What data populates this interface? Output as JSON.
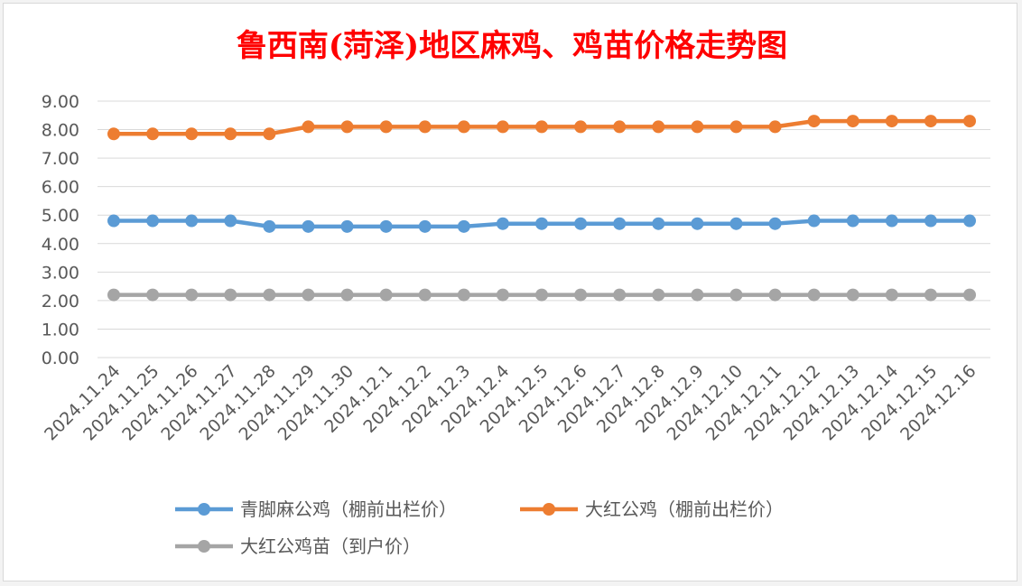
{
  "chart_data": {
    "type": "line",
    "title": "鲁西南(菏泽)地区麻鸡、鸡苗价格走势图",
    "xlabel": "",
    "ylabel": "",
    "ylim": [
      0,
      9
    ],
    "y_ticks": [
      "0.00",
      "1.00",
      "2.00",
      "3.00",
      "4.00",
      "5.00",
      "6.00",
      "7.00",
      "8.00",
      "9.00"
    ],
    "grid": true,
    "legend_position": "bottom",
    "categories": [
      "2024.11.24",
      "2024.11.25",
      "2024.11.26",
      "2024.11.27",
      "2024.11.28",
      "2024.11.29",
      "2024.11.30",
      "2024.12.1",
      "2024.12.2",
      "2024.12.3",
      "2024.12.4",
      "2024.12.5",
      "2024.12.6",
      "2024.12.7",
      "2024.12.8",
      "2024.12.9",
      "2024.12.10",
      "2024.12.11",
      "2024.12.12",
      "2024.12.13",
      "2024.12.14",
      "2024.12.15",
      "2024.12.16"
    ],
    "series": [
      {
        "name": "青脚麻公鸡（棚前出栏价）",
        "color": "#5b9bd5",
        "values": [
          4.8,
          4.8,
          4.8,
          4.8,
          4.6,
          4.6,
          4.6,
          4.6,
          4.6,
          4.6,
          4.7,
          4.7,
          4.7,
          4.7,
          4.7,
          4.7,
          4.7,
          4.7,
          4.8,
          4.8,
          4.8,
          4.8,
          4.8
        ]
      },
      {
        "name": "大红公鸡（棚前出栏价）",
        "color": "#ed7d31",
        "values": [
          7.85,
          7.85,
          7.85,
          7.85,
          7.85,
          8.1,
          8.1,
          8.1,
          8.1,
          8.1,
          8.1,
          8.1,
          8.1,
          8.1,
          8.1,
          8.1,
          8.1,
          8.1,
          8.3,
          8.3,
          8.3,
          8.3,
          8.3
        ]
      },
      {
        "name": "大红公鸡苗（到户价）",
        "color": "#a5a5a5",
        "values": [
          2.2,
          2.2,
          2.2,
          2.2,
          2.2,
          2.2,
          2.2,
          2.2,
          2.2,
          2.2,
          2.2,
          2.2,
          2.2,
          2.2,
          2.2,
          2.2,
          2.2,
          2.2,
          2.2,
          2.2,
          2.2,
          2.2,
          2.2
        ]
      }
    ]
  }
}
